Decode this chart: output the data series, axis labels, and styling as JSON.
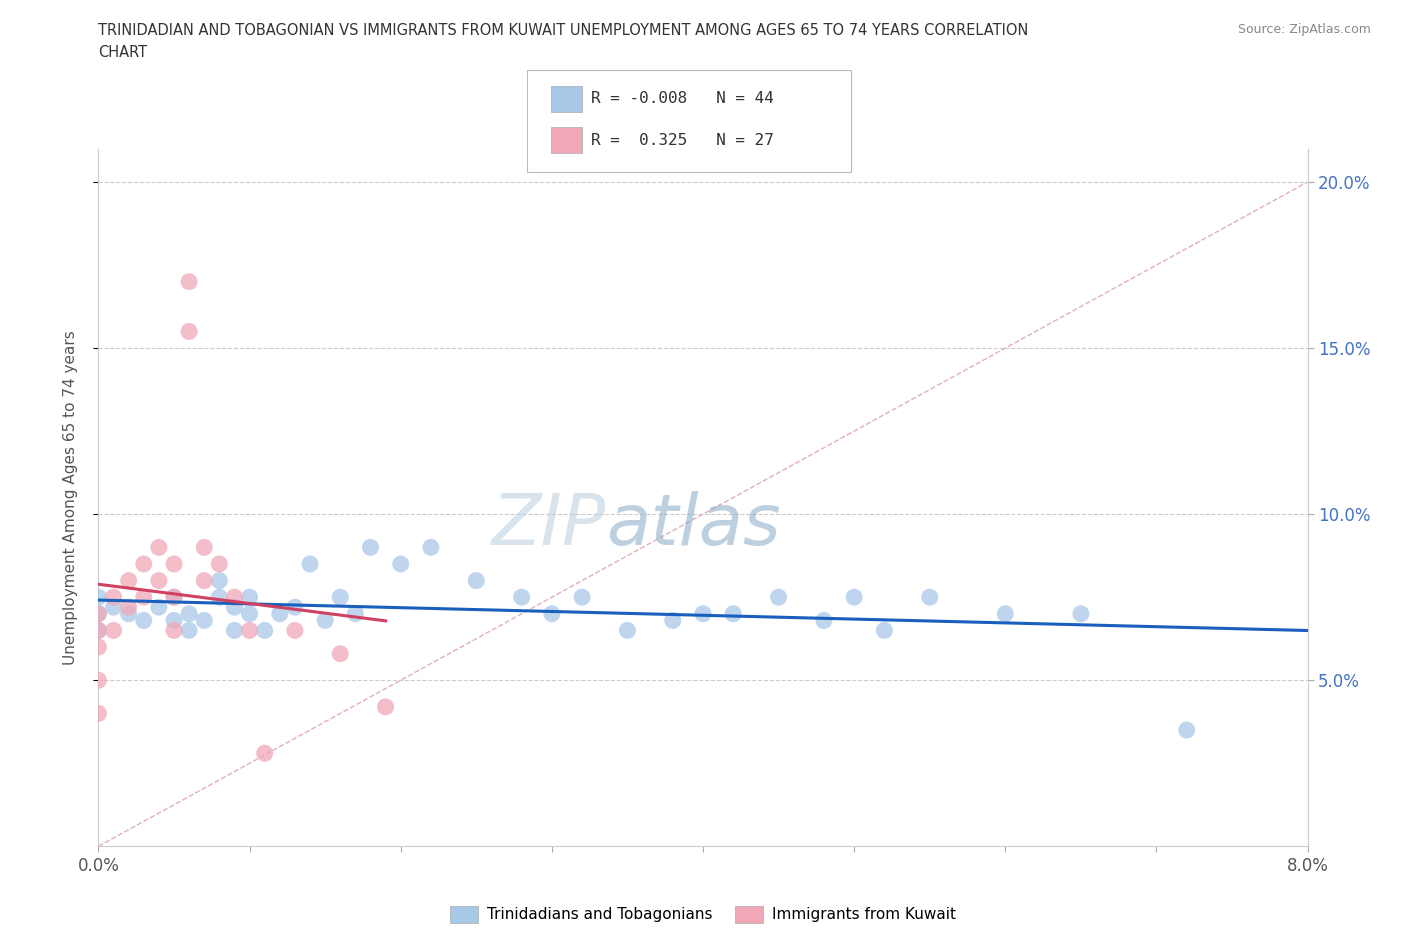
{
  "title_line1": "TRINIDADIAN AND TOBAGONIAN VS IMMIGRANTS FROM KUWAIT UNEMPLOYMENT AMONG AGES 65 TO 74 YEARS CORRELATION",
  "title_line2": "CHART",
  "source": "Source: ZipAtlas.com",
  "ylabel": "Unemployment Among Ages 65 to 74 years",
  "xlim": [
    0.0,
    0.08
  ],
  "ylim": [
    0.0,
    0.21
  ],
  "xticks": [
    0.0,
    0.01,
    0.02,
    0.03,
    0.04,
    0.05,
    0.06,
    0.07,
    0.08
  ],
  "xticklabels": [
    "0.0%",
    "",
    "",
    "",
    "",
    "",
    "",
    "",
    "8.0%"
  ],
  "ytick_positions": [
    0.05,
    0.1,
    0.15,
    0.2
  ],
  "ytick_labels": [
    "5.0%",
    "10.0%",
    "15.0%",
    "20.0%"
  ],
  "blue_R": "-0.008",
  "blue_N": "44",
  "pink_R": "0.325",
  "pink_N": "27",
  "blue_color": "#a8c8e8",
  "pink_color": "#f0a8b8",
  "blue_line_color": "#1a5fbd",
  "pink_line_color": "#d04060",
  "diagonal_color": "#e0b0b8",
  "watermark_color": "#c8ddf0",
  "blue_scatter_x": [
    0.0,
    0.0,
    0.0,
    0.001,
    0.002,
    0.003,
    0.004,
    0.005,
    0.005,
    0.006,
    0.006,
    0.007,
    0.008,
    0.008,
    0.009,
    0.009,
    0.01,
    0.01,
    0.011,
    0.012,
    0.013,
    0.014,
    0.015,
    0.016,
    0.017,
    0.018,
    0.02,
    0.022,
    0.025,
    0.028,
    0.03,
    0.032,
    0.035,
    0.038,
    0.04,
    0.042,
    0.045,
    0.048,
    0.05,
    0.052,
    0.055,
    0.06,
    0.065,
    0.072
  ],
  "blue_scatter_y": [
    0.075,
    0.07,
    0.065,
    0.072,
    0.07,
    0.068,
    0.072,
    0.075,
    0.068,
    0.07,
    0.065,
    0.068,
    0.08,
    0.075,
    0.072,
    0.065,
    0.075,
    0.07,
    0.065,
    0.07,
    0.072,
    0.085,
    0.068,
    0.075,
    0.07,
    0.09,
    0.085,
    0.09,
    0.08,
    0.075,
    0.07,
    0.075,
    0.065,
    0.068,
    0.07,
    0.07,
    0.075,
    0.068,
    0.075,
    0.065,
    0.075,
    0.07,
    0.07,
    0.035
  ],
  "pink_scatter_x": [
    0.0,
    0.0,
    0.0,
    0.0,
    0.0,
    0.001,
    0.001,
    0.002,
    0.002,
    0.003,
    0.003,
    0.004,
    0.004,
    0.005,
    0.005,
    0.005,
    0.006,
    0.006,
    0.007,
    0.007,
    0.008,
    0.009,
    0.01,
    0.011,
    0.013,
    0.016,
    0.019
  ],
  "pink_scatter_y": [
    0.07,
    0.065,
    0.06,
    0.05,
    0.04,
    0.075,
    0.065,
    0.08,
    0.072,
    0.085,
    0.075,
    0.09,
    0.08,
    0.085,
    0.075,
    0.065,
    0.17,
    0.155,
    0.09,
    0.08,
    0.085,
    0.075,
    0.065,
    0.028,
    0.065,
    0.058,
    0.042
  ]
}
